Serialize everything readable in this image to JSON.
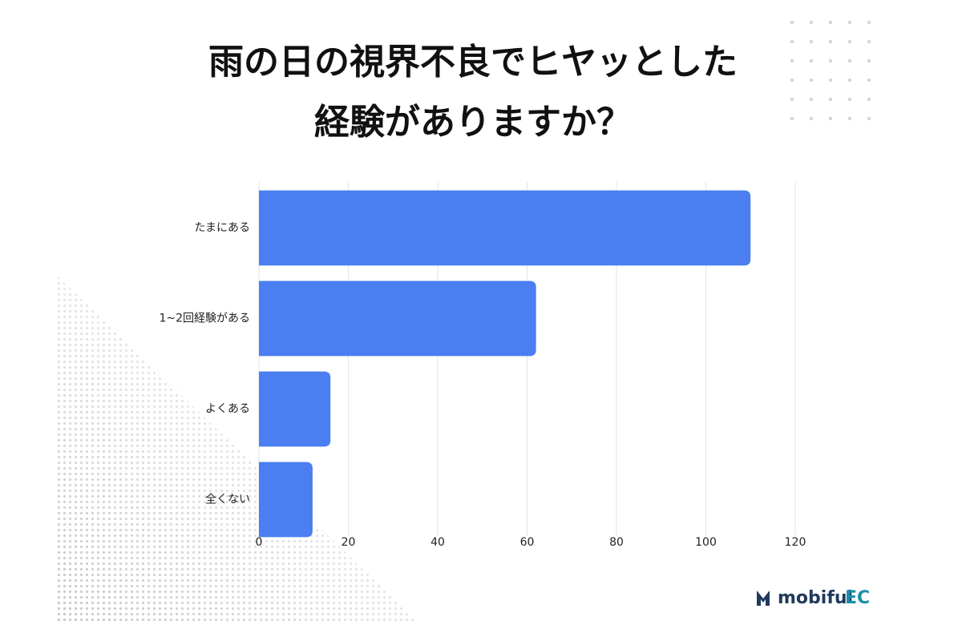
{
  "chart_data": {
    "type": "bar",
    "orientation": "horizontal",
    "title": [
      "雨の日の視界不良でヒヤッとした",
      "経験がありますか？"
    ],
    "categories": [
      "たまにある",
      "1~2回経験がある",
      "よくある",
      "全くない"
    ],
    "values": [
      110,
      62,
      16,
      12
    ],
    "color": "#4a7ef1",
    "xlim": [
      0,
      120
    ],
    "xticks": [
      0,
      20,
      40,
      60,
      80,
      100,
      120
    ],
    "grid": true
  },
  "logo": {
    "name": "mobiful",
    "suffix": "EC"
  }
}
